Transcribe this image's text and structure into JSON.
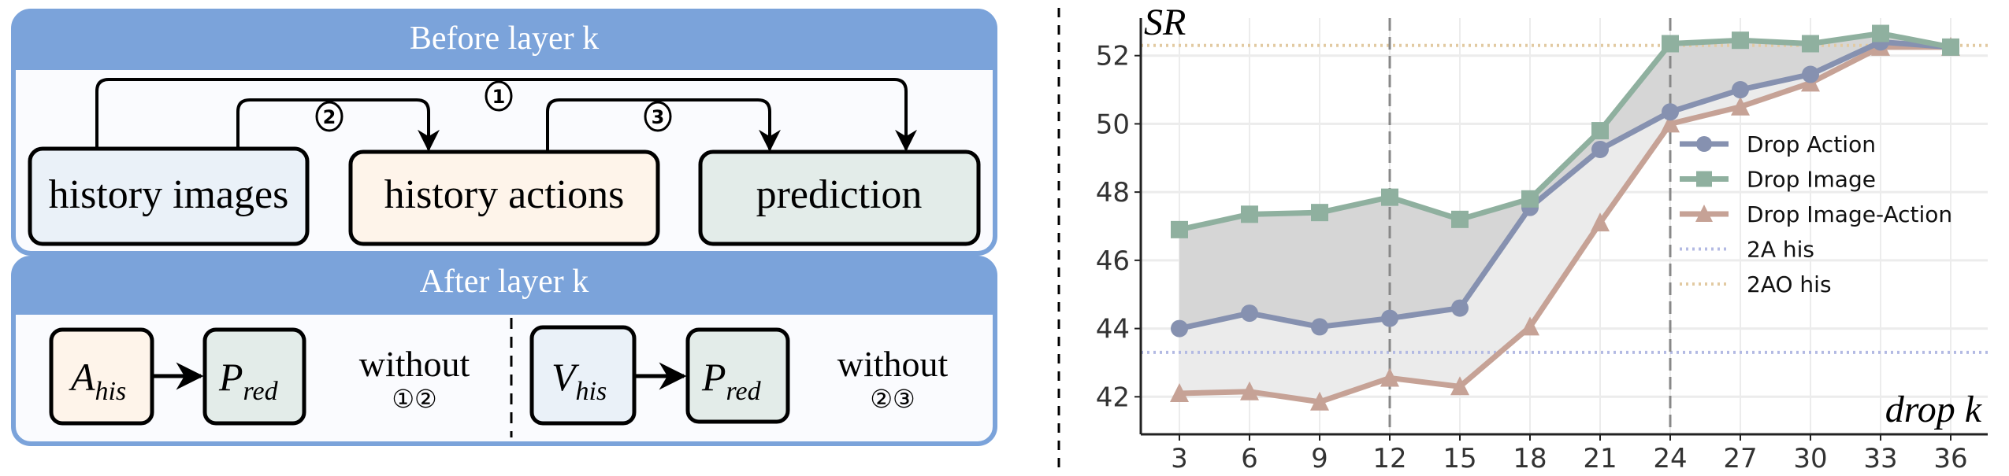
{
  "diagram": {
    "before": {
      "title": "Before layer k",
      "boxes": [
        {
          "label": "history images",
          "fill": "#eaf1f8"
        },
        {
          "label": "history actions",
          "fill": "#fef4ea"
        },
        {
          "label": "prediction",
          "fill": "#e3ece9"
        }
      ],
      "markers": [
        "①",
        "②",
        "③"
      ]
    },
    "after": {
      "title": "After layer k",
      "left": {
        "source": "A",
        "source_sub": "his",
        "target": "P",
        "target_sub": "red",
        "note": "without",
        "markers": "①②"
      },
      "right": {
        "source": "V",
        "source_sub": "his",
        "target": "P",
        "target_sub": "red",
        "note": "without",
        "markers": "②③"
      }
    },
    "header_color": "#7ba3da"
  },
  "chart_data": {
    "type": "line",
    "ylabel": "SR",
    "xlabel": "drop k",
    "x": [
      3,
      6,
      9,
      12,
      15,
      18,
      21,
      24,
      27,
      30,
      33,
      36
    ],
    "xticks": [
      "3",
      "6",
      "9",
      "12",
      "15",
      "18",
      "21",
      "24",
      "27",
      "30",
      "33",
      "36"
    ],
    "yticks": [
      "42",
      "44",
      "46",
      "48",
      "50",
      "52"
    ],
    "ylim": [
      40.9,
      53.1
    ],
    "grid": true,
    "legend_position": "center-right",
    "series": [
      {
        "name": "Drop Action",
        "marker": "circle",
        "color": "#8691b0",
        "values": [
          44.0,
          44.45,
          44.05,
          44.3,
          44.6,
          47.55,
          49.25,
          50.35,
          51.0,
          51.45,
          52.4,
          52.25
        ]
      },
      {
        "name": "Drop Image",
        "marker": "square",
        "color": "#8fb09f",
        "values": [
          46.9,
          47.35,
          47.4,
          47.85,
          47.2,
          47.8,
          49.8,
          52.35,
          52.45,
          52.35,
          52.65,
          52.25
        ]
      },
      {
        "name": "Drop Image-Action",
        "marker": "triangle",
        "color": "#c6a296",
        "values": [
          42.1,
          42.15,
          41.85,
          42.55,
          42.3,
          44.05,
          47.1,
          50.0,
          50.5,
          51.2,
          52.25,
          52.25
        ]
      }
    ],
    "reference_lines": [
      {
        "name": "2A his",
        "value": 43.3,
        "color": "#b3bae3"
      },
      {
        "name": "2AO his",
        "value": 52.3,
        "color": "#e2caa2"
      }
    ],
    "vertical_markers": [
      12,
      24
    ]
  }
}
